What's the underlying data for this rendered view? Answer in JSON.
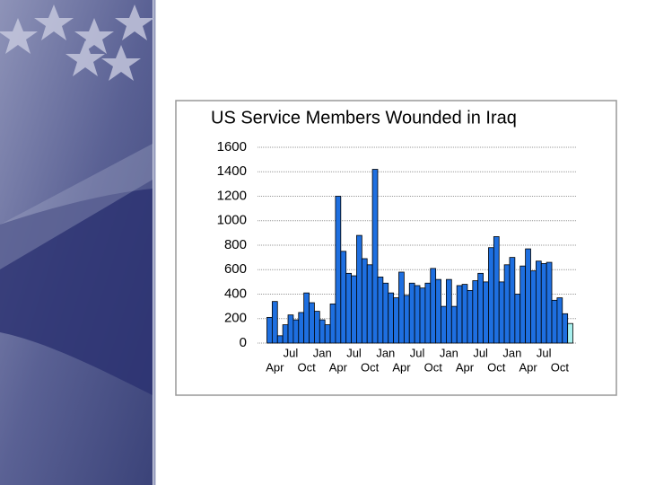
{
  "chart_data": {
    "type": "bar",
    "title": "US Service Members Wounded in Iraq",
    "categories": [
      null,
      "Apr",
      null,
      null,
      "Jul",
      null,
      null,
      "Oct",
      null,
      null,
      "Jan",
      null,
      null,
      "Apr",
      null,
      null,
      "Jul",
      null,
      null,
      "Oct",
      null,
      null,
      "Jan",
      null,
      null,
      "Apr",
      null,
      null,
      "Jul",
      null,
      null,
      "Oct",
      null,
      null,
      "Jan",
      null,
      null,
      "Apr",
      null,
      null,
      "Jul",
      null,
      null,
      "Oct",
      null,
      null,
      "Jan",
      null,
      null,
      "Apr",
      null,
      null,
      "Jul",
      null,
      null,
      "Oct",
      null,
      null
    ],
    "values": [
      210,
      340,
      60,
      150,
      230,
      190,
      250,
      410,
      330,
      260,
      190,
      150,
      320,
      1200,
      750,
      570,
      550,
      880,
      690,
      640,
      1420,
      540,
      490,
      410,
      370,
      580,
      390,
      490,
      470,
      450,
      490,
      610,
      520,
      300,
      520,
      300,
      470,
      480,
      430,
      510,
      570,
      500,
      780,
      870,
      500,
      640,
      700,
      400,
      630,
      770,
      590,
      670,
      650,
      660,
      350,
      370,
      240,
      160
    ],
    "colors": [
      "#1e6fe0",
      "#1e6fe0",
      "#1e6fe0",
      "#1e6fe0",
      "#1e6fe0",
      "#1e6fe0",
      "#1e6fe0",
      "#1e6fe0",
      "#1e6fe0",
      "#1e6fe0",
      "#1e6fe0",
      "#1e6fe0",
      "#1e6fe0",
      "#1e6fe0",
      "#1e6fe0",
      "#1e6fe0",
      "#1e6fe0",
      "#1e6fe0",
      "#1e6fe0",
      "#1e6fe0",
      "#1e6fe0",
      "#1e6fe0",
      "#1e6fe0",
      "#1e6fe0",
      "#1e6fe0",
      "#1e6fe0",
      "#1e6fe0",
      "#1e6fe0",
      "#1e6fe0",
      "#1e6fe0",
      "#1e6fe0",
      "#1e6fe0",
      "#1e6fe0",
      "#1e6fe0",
      "#1e6fe0",
      "#1e6fe0",
      "#1e6fe0",
      "#1e6fe0",
      "#1e6fe0",
      "#1e6fe0",
      "#1e6fe0",
      "#1e6fe0",
      "#1e6fe0",
      "#1e6fe0",
      "#1e6fe0",
      "#1e6fe0",
      "#1e6fe0",
      "#1e6fe0",
      "#1e6fe0",
      "#1e6fe0",
      "#1e6fe0",
      "#1e6fe0",
      "#1e6fe0",
      "#1e6fe0",
      "#1e6fe0",
      "#1e6fe0",
      "#1e6fe0",
      "#a8f0ee"
    ],
    "ylim": [
      0,
      1600
    ],
    "yticks": [
      0,
      200,
      400,
      600,
      800,
      1000,
      1200,
      1400,
      1600
    ],
    "grid": true
  }
}
